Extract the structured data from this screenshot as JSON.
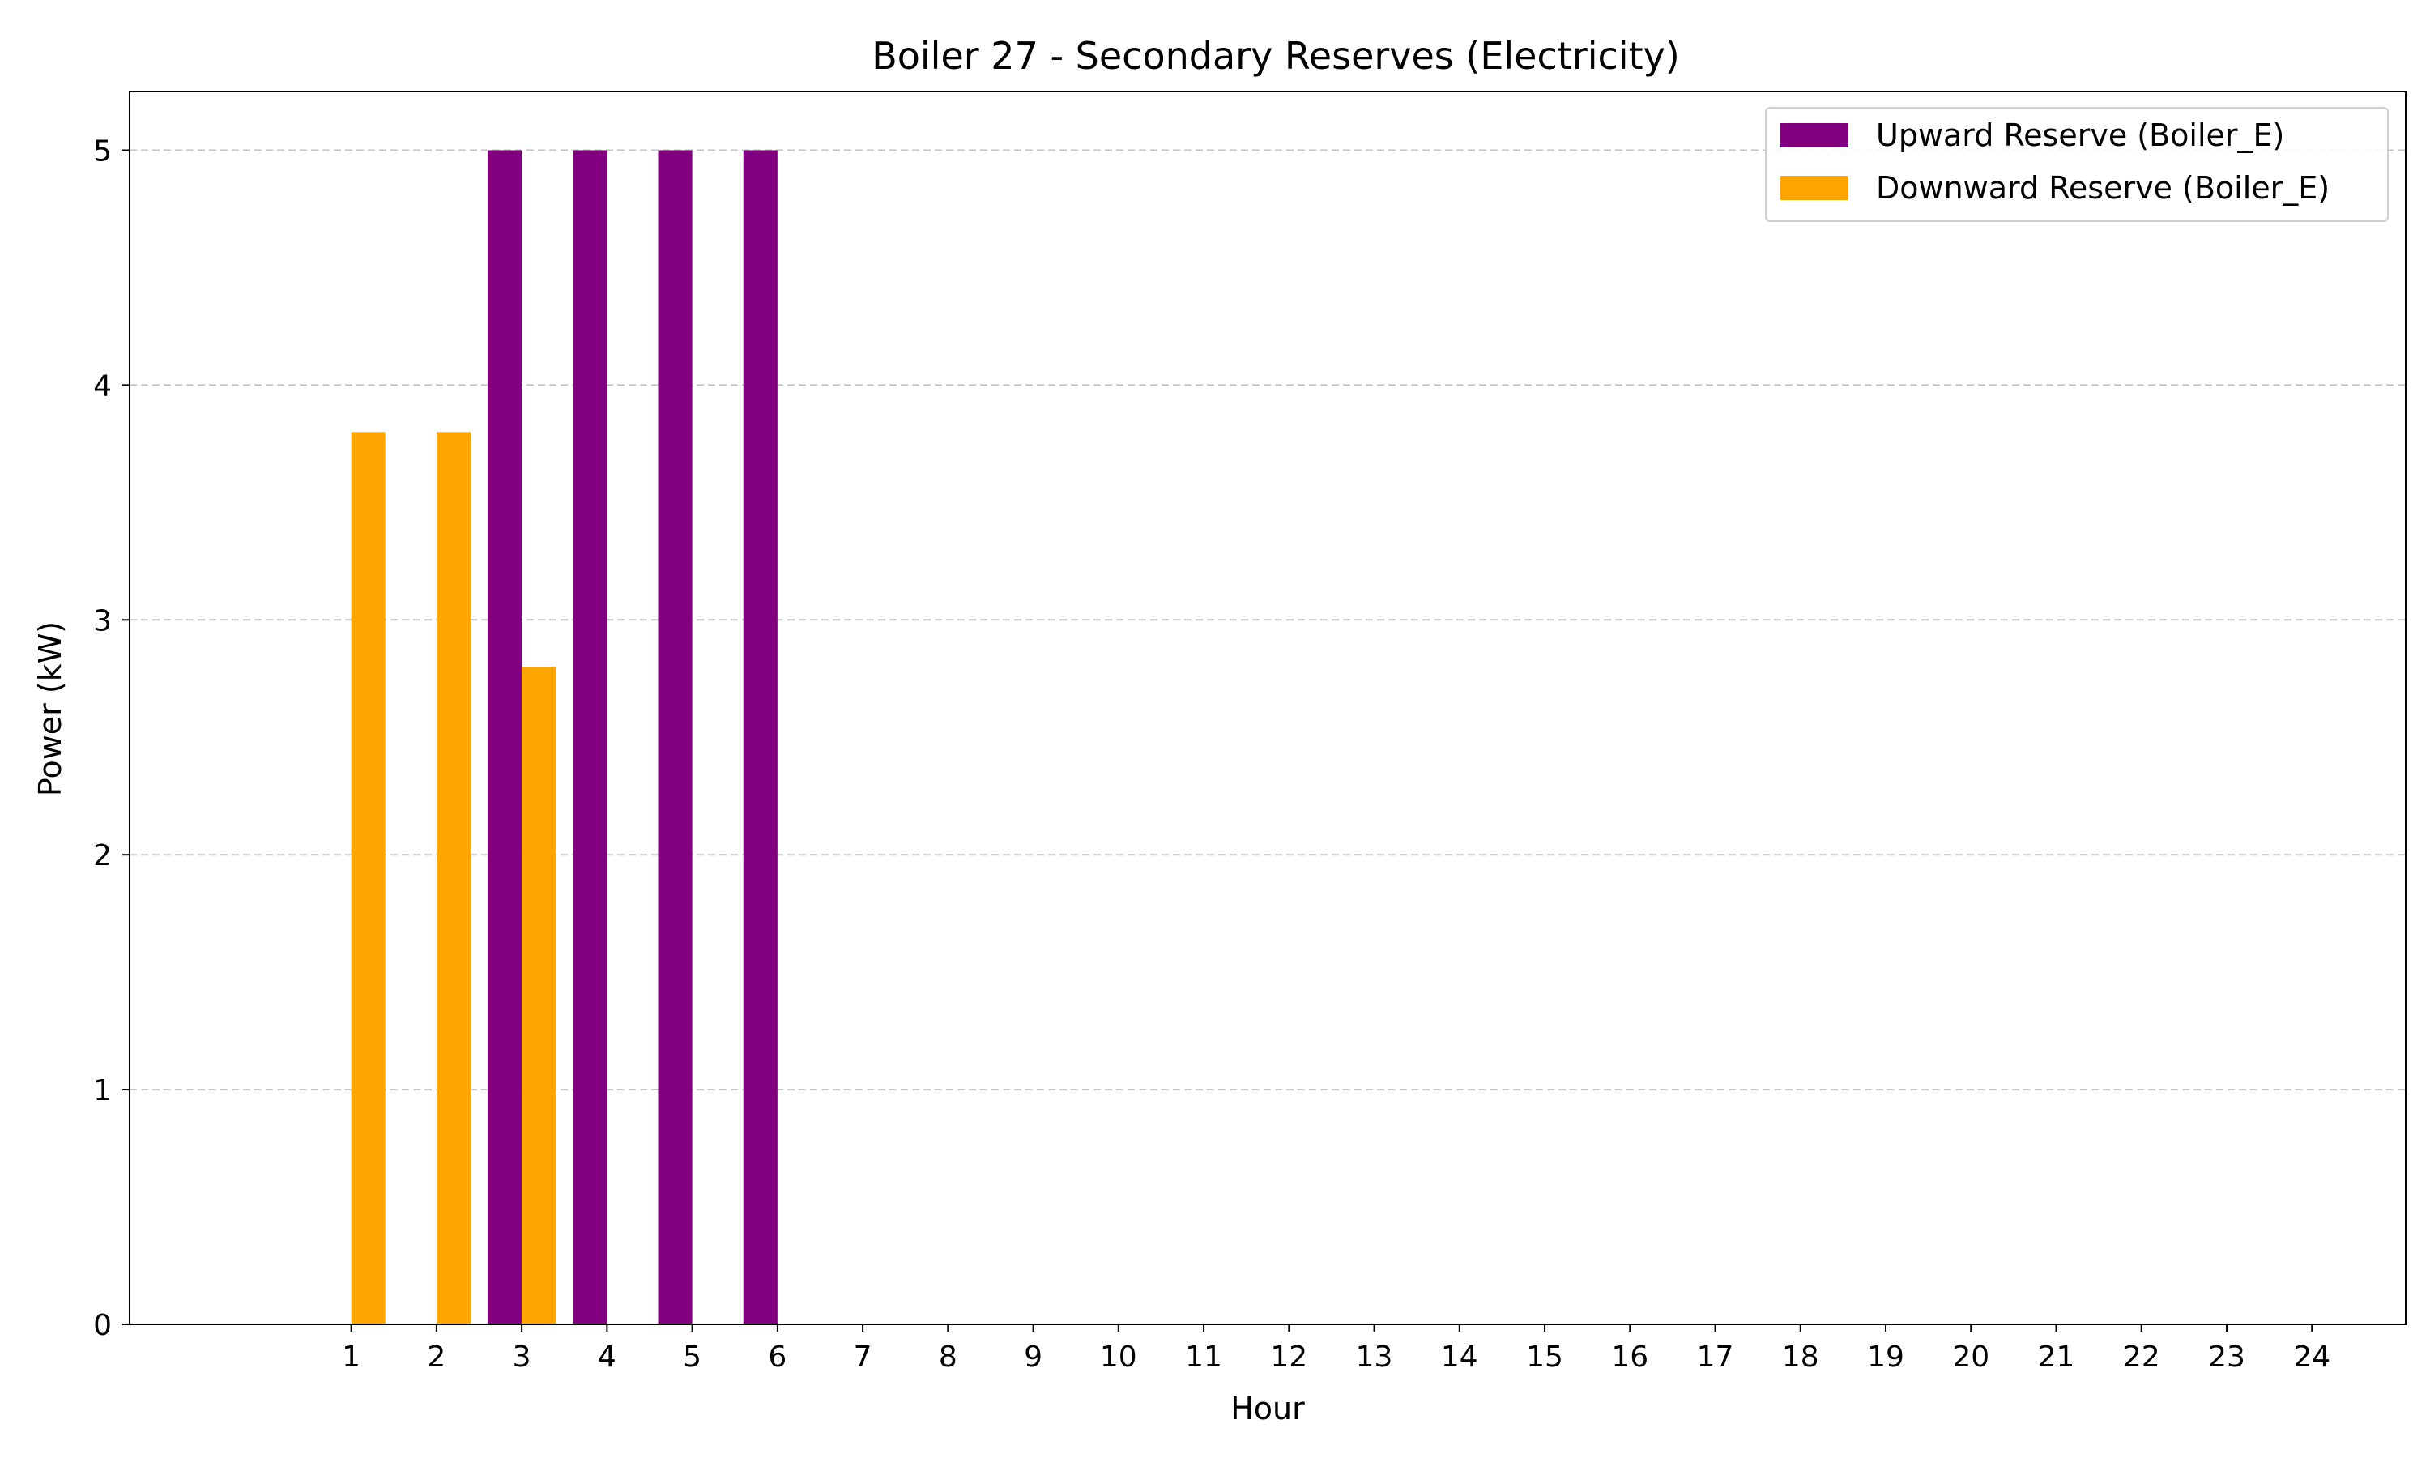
{
  "chart_data": {
    "type": "bar",
    "title": "Boiler 27 - Secondary Reserves (Electricity)",
    "xlabel": "Hour",
    "ylabel": "Power (kW)",
    "categories": [
      "1",
      "2",
      "3",
      "4",
      "5",
      "6",
      "7",
      "8",
      "9",
      "10",
      "11",
      "12",
      "13",
      "14",
      "15",
      "16",
      "17",
      "18",
      "19",
      "20",
      "21",
      "22",
      "23",
      "24"
    ],
    "ylim": [
      0,
      5.25
    ],
    "yticks": [
      0,
      1,
      2,
      3,
      4,
      5
    ],
    "grid": "y-dashed",
    "legend_position": "top-right",
    "series": [
      {
        "name": "Upward Reserve (Boiler_E)",
        "color": "#800080",
        "values": [
          0,
          0,
          5,
          5,
          5,
          5,
          0,
          0,
          0,
          0,
          0,
          0,
          0,
          0,
          0,
          0,
          0,
          0,
          0,
          0,
          0,
          0,
          0,
          0
        ]
      },
      {
        "name": "Downward Reserve (Boiler_E)",
        "color": "#FFA500",
        "values": [
          3.8,
          3.8,
          2.8,
          0,
          0,
          0,
          0,
          0,
          0,
          0,
          0,
          0,
          0,
          0,
          0,
          0,
          0,
          0,
          0,
          0,
          0,
          0,
          0,
          0
        ]
      }
    ]
  }
}
